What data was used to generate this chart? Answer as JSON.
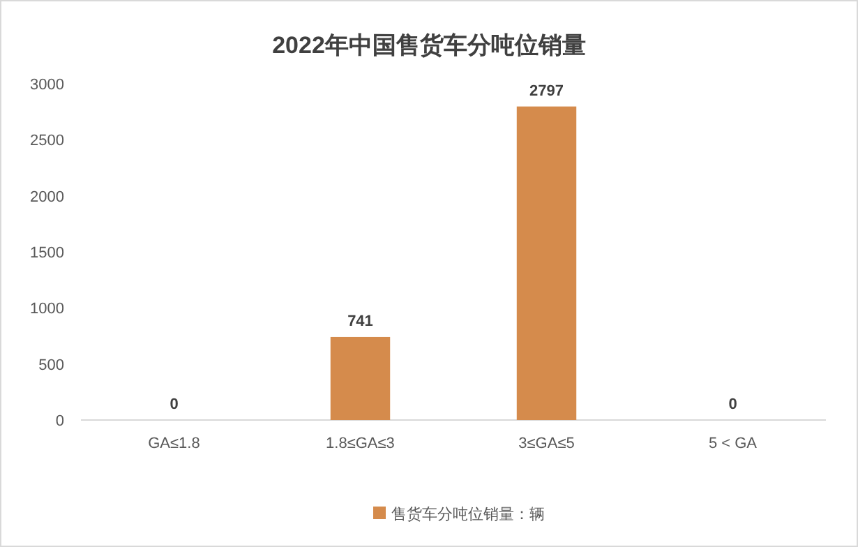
{
  "chart_data": {
    "type": "bar",
    "title": "2022年中国售货车分吨位销量",
    "categories": [
      "GA≤1.8",
      "1.8≤GA≤3",
      "3≤GA≤5",
      "5 < GA"
    ],
    "series": [
      {
        "name": "售货车分吨位销量：辆",
        "color": "#d58b4c",
        "values": [
          0,
          741,
          2797,
          0
        ]
      }
    ],
    "ylim": [
      0,
      3000
    ],
    "yticks": [
      0,
      500,
      1000,
      1500,
      2000,
      2500,
      3000
    ],
    "data_labels": true,
    "legend": "bottom",
    "grid": false
  }
}
